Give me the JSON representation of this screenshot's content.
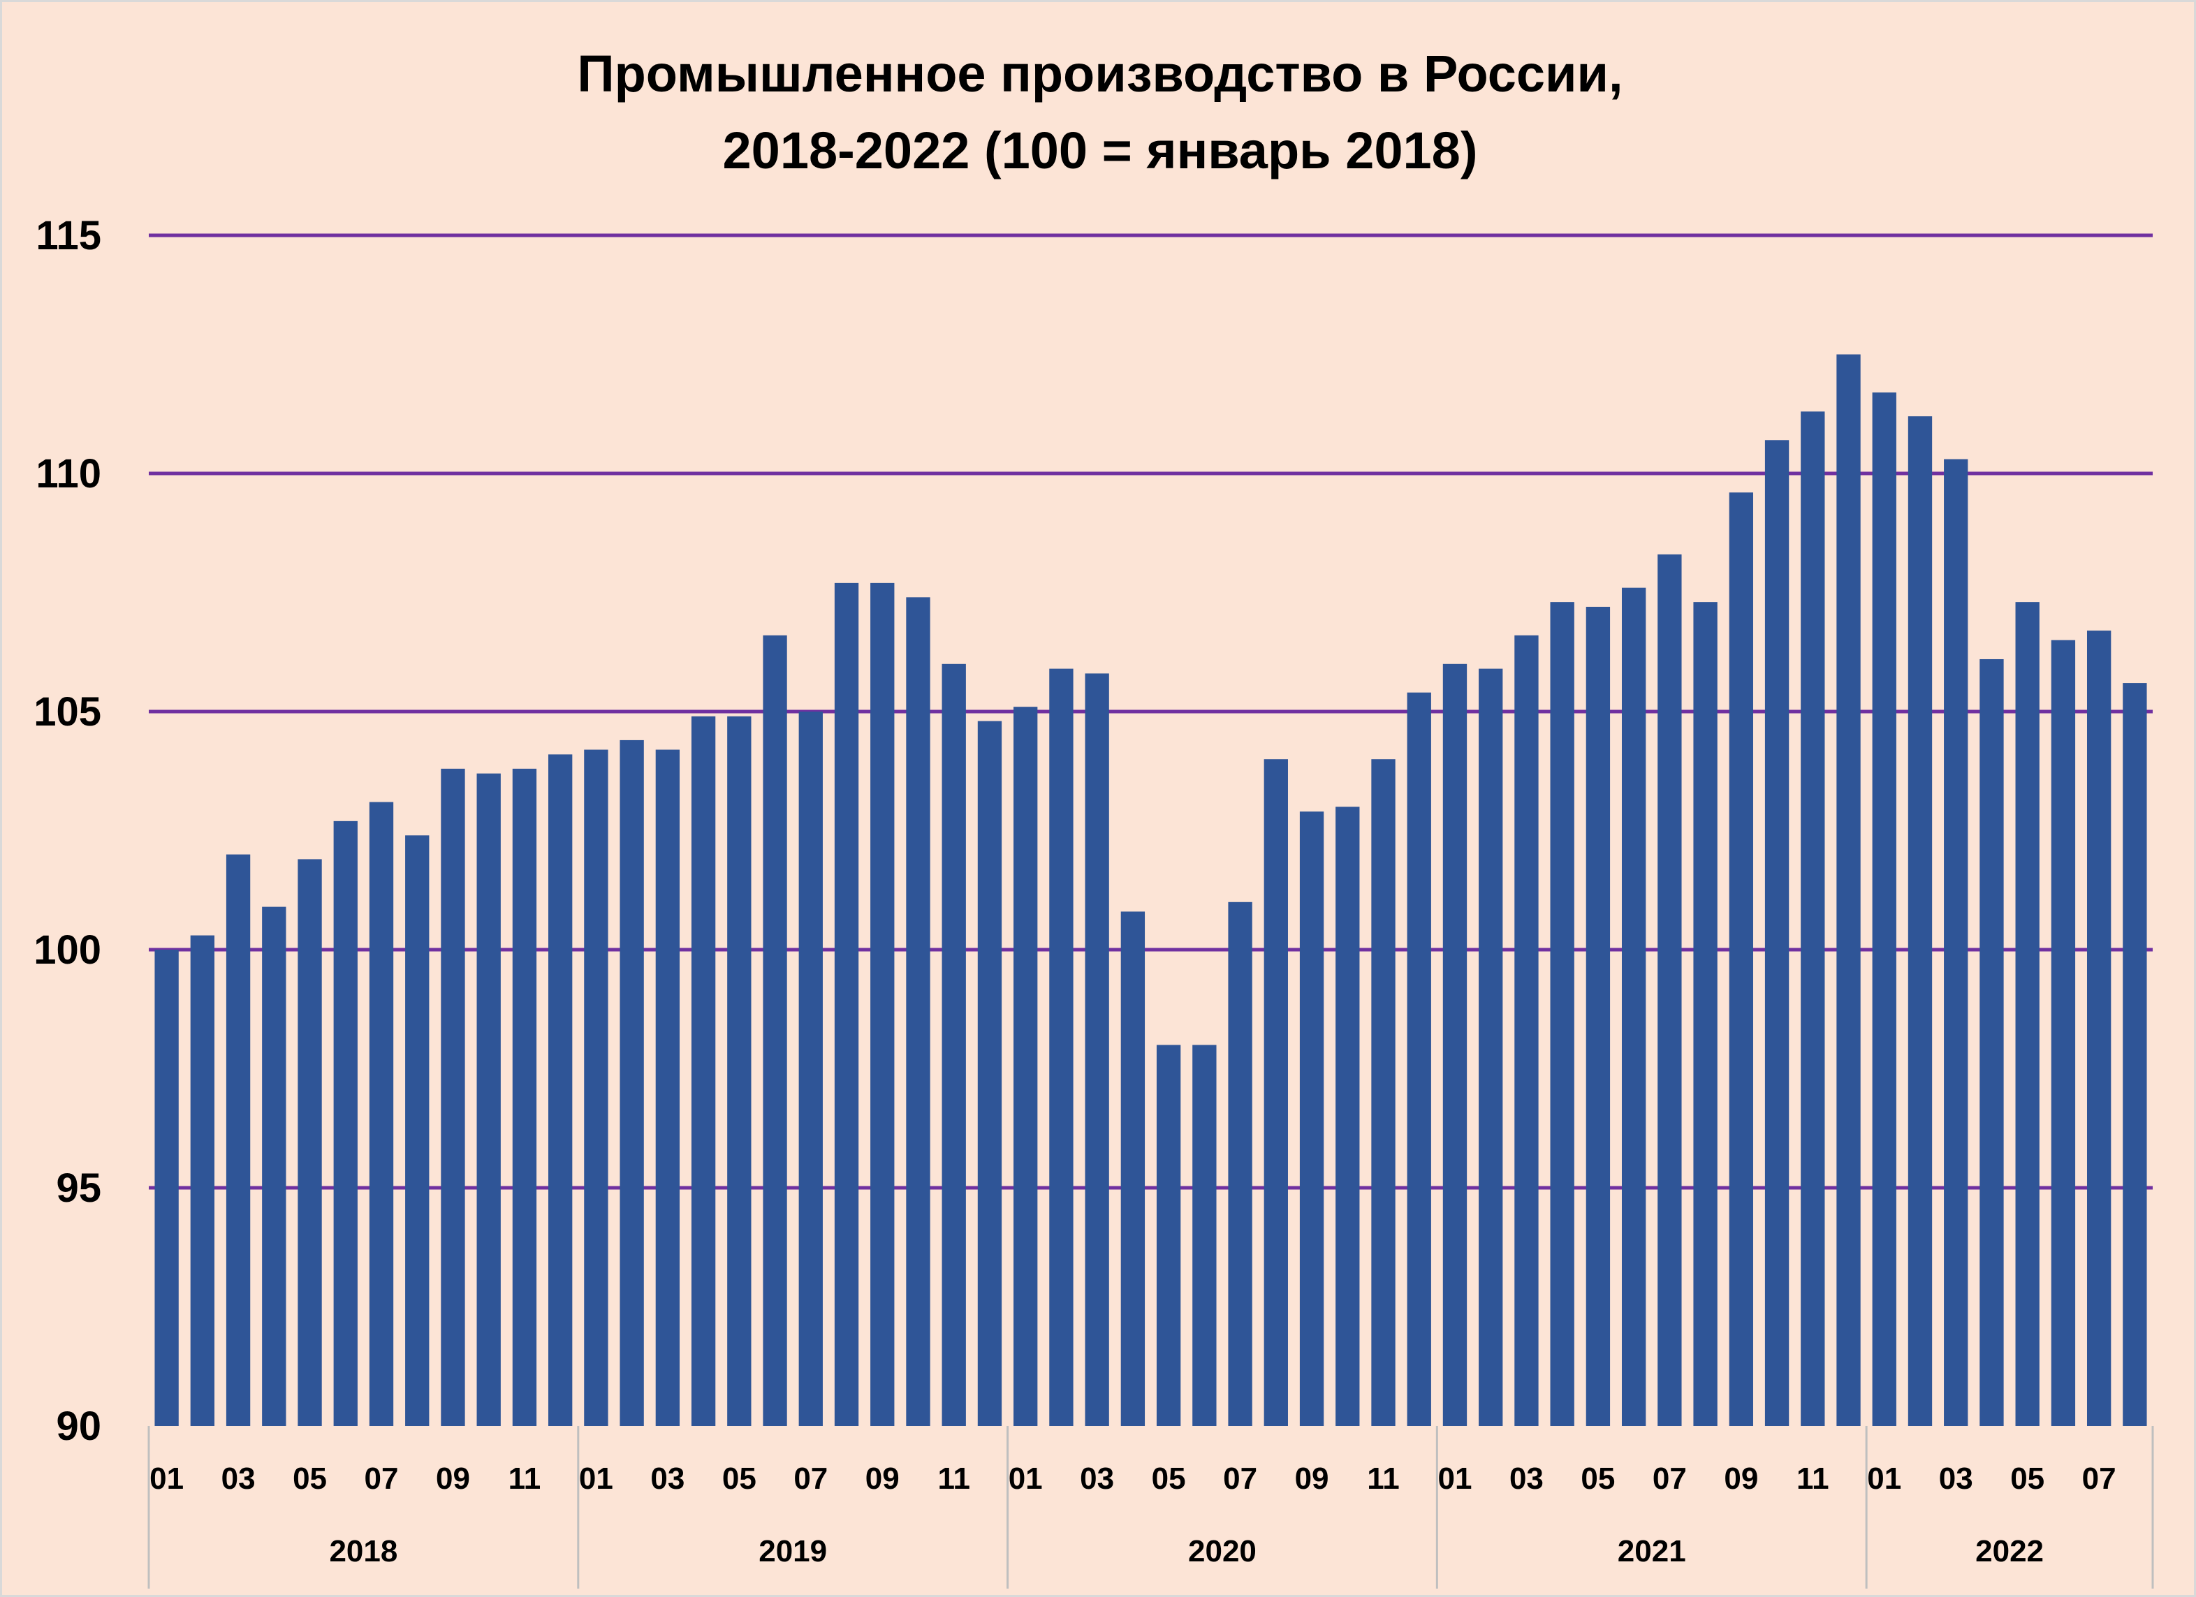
{
  "chart_data": {
    "type": "bar",
    "title": "Промышленное производство в России,",
    "subtitle": "2018-2022 (100 = январь 2018)",
    "ylim": [
      90,
      115
    ],
    "yticks": [
      90,
      95,
      100,
      105,
      110,
      115
    ],
    "grid": true,
    "colors": {
      "bar": "#2f5597",
      "grid": "#7030a0",
      "background": "#fce4d6",
      "separator": "#bfbfbf"
    },
    "categories": [
      "01",
      "02",
      "03",
      "04",
      "05",
      "06",
      "07",
      "08",
      "09",
      "10",
      "11",
      "12",
      "01",
      "02",
      "03",
      "04",
      "05",
      "06",
      "07",
      "08",
      "09",
      "10",
      "11",
      "12",
      "01",
      "02",
      "03",
      "04",
      "05",
      "06",
      "07",
      "08",
      "09",
      "10",
      "11",
      "12",
      "01",
      "02",
      "03",
      "04",
      "05",
      "06",
      "07",
      "08",
      "09",
      "10",
      "11",
      "12",
      "01",
      "02",
      "03",
      "04",
      "05",
      "06",
      "07",
      "08"
    ],
    "values": [
      100.0,
      100.3,
      102.0,
      100.9,
      101.9,
      102.7,
      103.1,
      102.4,
      103.8,
      103.7,
      103.8,
      104.1,
      104.2,
      104.4,
      104.2,
      104.9,
      104.9,
      106.6,
      105.0,
      107.7,
      107.7,
      107.4,
      106.0,
      104.8,
      105.1,
      105.9,
      105.8,
      100.8,
      98.0,
      98.0,
      101.0,
      104.0,
      102.9,
      103.0,
      104.0,
      105.4,
      106.0,
      105.9,
      106.6,
      107.3,
      107.2,
      107.6,
      108.3,
      107.3,
      109.6,
      110.7,
      111.3,
      112.5,
      111.7,
      111.2,
      110.3,
      106.1,
      107.3,
      106.5,
      106.7,
      105.6
    ],
    "x_tick_labels": [
      "01",
      "03",
      "05",
      "07",
      "09",
      "11",
      "01",
      "03",
      "05",
      "07",
      "09",
      "11",
      "01",
      "03",
      "05",
      "07",
      "09",
      "11",
      "01",
      "03",
      "05",
      "07",
      "09",
      "11",
      "01",
      "03",
      "05",
      "07"
    ],
    "year_groups": [
      {
        "label": "2018",
        "months": 12
      },
      {
        "label": "2019",
        "months": 12
      },
      {
        "label": "2020",
        "months": 12
      },
      {
        "label": "2021",
        "months": 12
      },
      {
        "label": "2022",
        "months": 8
      }
    ]
  }
}
